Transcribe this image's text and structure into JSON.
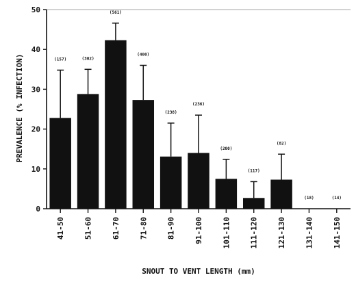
{
  "chart_data": {
    "type": "bar",
    "title": "",
    "xlabel": "SNOUT TO VENT LENGTH (mm)",
    "ylabel": "PREVALENCE (% INFECTION)",
    "ylim": [
      0,
      50
    ],
    "yticks": [
      0,
      10,
      20,
      30,
      40,
      50
    ],
    "grid": false,
    "error_bars": "upper",
    "bar_color": "#111111",
    "categories": [
      "41-50",
      "51-60",
      "61-70",
      "71-80",
      "81-90",
      "91-100",
      "101-110",
      "111-120",
      "121-130",
      "131-140",
      "141-150"
    ],
    "values": [
      22.8,
      28.8,
      42.3,
      27.3,
      13.1,
      14.0,
      7.5,
      2.7,
      7.3,
      0,
      0
    ],
    "error_upper": [
      34.8,
      35.0,
      46.6,
      36.0,
      21.5,
      23.5,
      12.4,
      6.8,
      13.7,
      null,
      null
    ],
    "sample_sizes": [
      "(157)",
      "(302)",
      "(561)",
      "(400)",
      "(238)",
      "(236)",
      "(200)",
      "(117)",
      "(82)",
      "(18)",
      "(14)"
    ]
  }
}
